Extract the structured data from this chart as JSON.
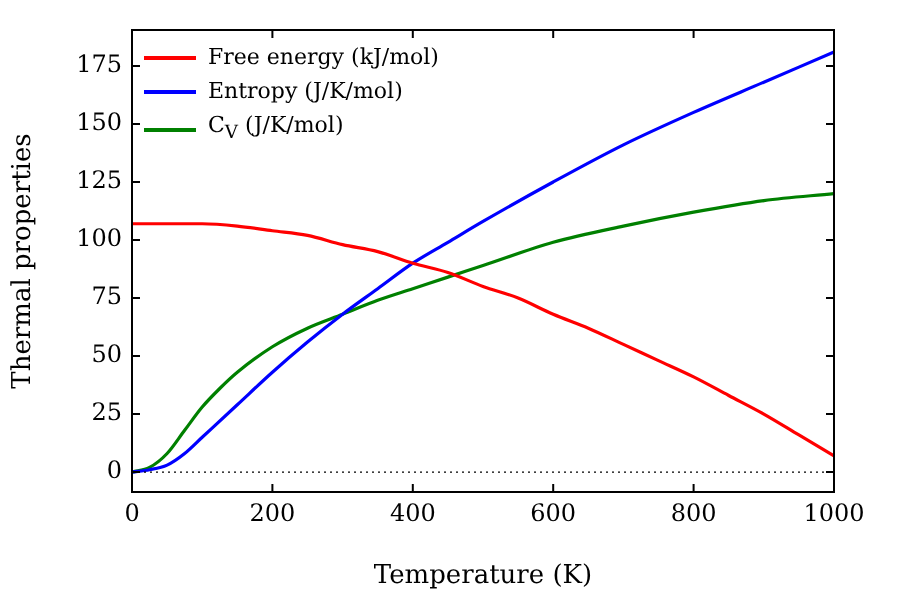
{
  "chart_data": {
    "type": "line",
    "xlabel": "Temperature (K)",
    "ylabel": "Thermal properties",
    "xlim": [
      0,
      1000
    ],
    "xticks": [
      0,
      200,
      400,
      600,
      800,
      1000
    ],
    "ylim": [
      -8.6,
      190.5
    ],
    "yticks": [
      0,
      25,
      50,
      75,
      100,
      125,
      150,
      175
    ],
    "grid": false,
    "legend": "top left",
    "marker": "none",
    "line_style": "solid",
    "ref_lines": [
      {
        "axis": "y",
        "value": 0,
        "color": "#000000",
        "line_style": "dotted"
      }
    ],
    "series": [
      {
        "name": "Free energy (kJ/mol)",
        "color": "#ff0000",
        "x": [
          0,
          50,
          100,
          150,
          200,
          250,
          300,
          350,
          400,
          450,
          500,
          550,
          600,
          650,
          700,
          750,
          800,
          850,
          900,
          950,
          1000
        ],
        "values": [
          107,
          107,
          107,
          106,
          104,
          102,
          98,
          95,
          90,
          86,
          80,
          75,
          68,
          62,
          55,
          48,
          41,
          33,
          25,
          16,
          7
        ]
      },
      {
        "name": "Entropy (J/K/mol)",
        "color": "#0000ff",
        "x": [
          0,
          25,
          50,
          75,
          100,
          150,
          200,
          250,
          300,
          350,
          400,
          450,
          500,
          600,
          700,
          800,
          900,
          1000
        ],
        "values": [
          0,
          1,
          3,
          8,
          15,
          29,
          43,
          56,
          68,
          79,
          90,
          99,
          108,
          125,
          141,
          155,
          168,
          181
        ]
      },
      {
        "name": "C$_{V}$ (J/K/mol)",
        "color": "#008000",
        "x": [
          0,
          25,
          50,
          75,
          100,
          125,
          150,
          200,
          250,
          300,
          350,
          400,
          450,
          500,
          600,
          700,
          800,
          900,
          1000
        ],
        "values": [
          0,
          2,
          8,
          18,
          28,
          36,
          43,
          54,
          62,
          68,
          74,
          79,
          84,
          89,
          99,
          106,
          112,
          117,
          120
        ]
      }
    ]
  }
}
